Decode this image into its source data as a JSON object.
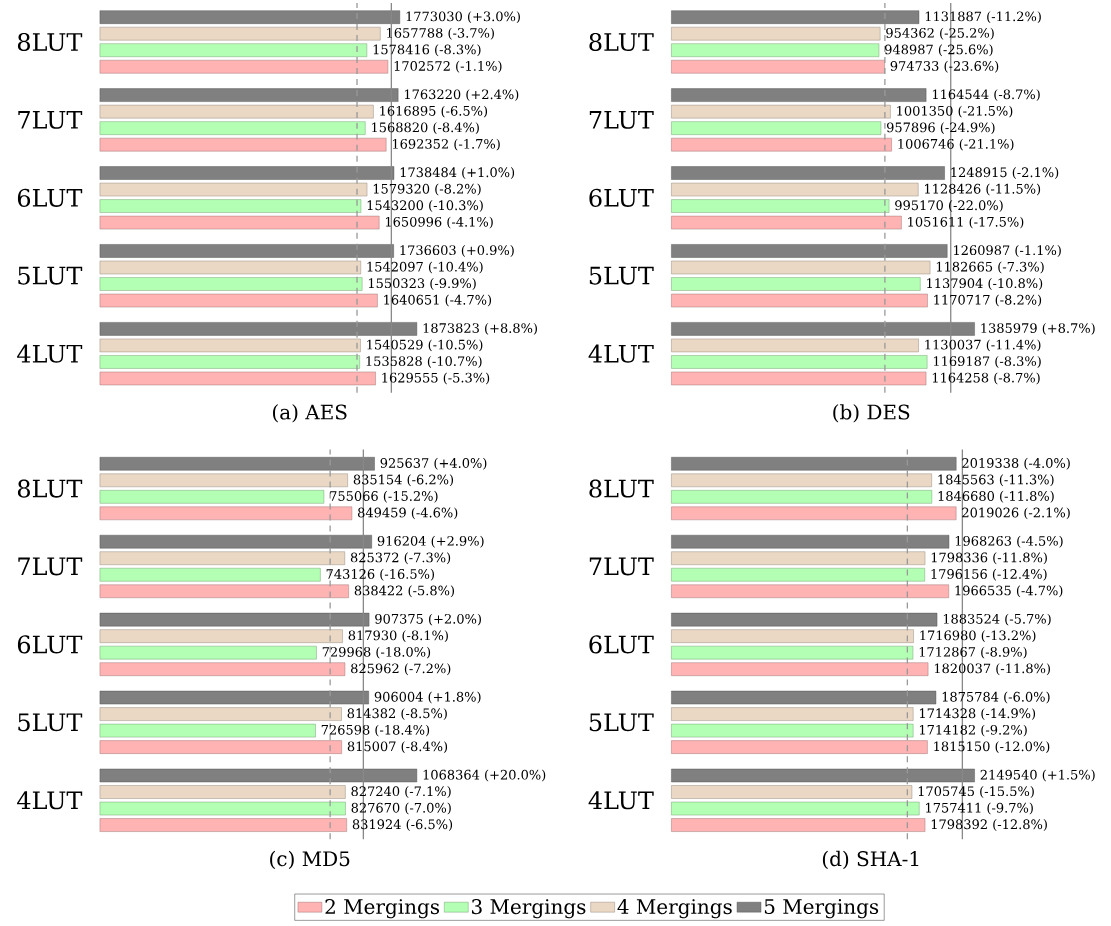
{
  "chart_data": [
    {
      "type": "bar",
      "orientation": "horizontal",
      "title": "(a) AES",
      "categories": [
        "8LUT",
        "7LUT",
        "6LUT",
        "5LUT",
        "4LUT"
      ],
      "tick_labels": "y",
      "series": [
        {
          "color": "#ffb3b3",
          "values": [
            1702572,
            1692352,
            1650996,
            1640651,
            1629555
          ],
          "value_labels": [
            "1702572 (-1.1%)",
            "1692352 (-1.7%)",
            "1650996 (-4.1%)",
            "1640651 (-4.7%)",
            "1629555 (-5.3%)"
          ]
        },
        {
          "color": "#b3ffb3",
          "values": [
            1578416,
            1568820,
            1543200,
            1550323,
            1535828
          ],
          "value_labels": [
            "1578416 (-8.3%)",
            "1568820 (-8.4%)",
            "1543200 (-10.3%)",
            "1550323 (-9.9%)",
            "1535828 (-10.7%)"
          ]
        },
        {
          "color": "#ead8c4",
          "values": [
            1657788,
            1616895,
            1579320,
            1542097,
            1540529
          ],
          "value_labels": [
            "1657788 (-3.7%)",
            "1616895 (-6.5%)",
            "1579320 (-8.2%)",
            "1542097 (-10.4%)",
            "1540529 (-10.5%)"
          ]
        },
        {
          "color": "#808080",
          "values": [
            1773030,
            1763220,
            1738484,
            1736603,
            1873823
          ],
          "value_labels": [
            "1773030 (+3.0%)",
            "1763220 (+2.4%)",
            "1738484 (+1.0%)",
            "1736603 (+0.9%)",
            "1873823 (+8.8%)"
          ]
        }
      ],
      "ref_lines": [
        {
          "axis": "x",
          "value": 1520000,
          "color": "#999999",
          "line_style": "dashed"
        },
        {
          "axis": "x",
          "value": 1723000,
          "color": "#888888",
          "line_style": "solid"
        }
      ]
    },
    {
      "type": "bar",
      "orientation": "horizontal",
      "title": "(b) DES",
      "categories": [
        "8LUT",
        "7LUT",
        "6LUT",
        "5LUT",
        "4LUT"
      ],
      "tick_labels": "y",
      "series": [
        {
          "color": "#ffb3b3",
          "values": [
            974733,
            1006746,
            1051611,
            1170717,
            1164258
          ],
          "value_labels": [
            "974733 (-23.6%)",
            "1006746 (-21.1%)",
            "1051611 (-17.5%)",
            "1170717 (-8.2%)",
            "1164258 (-8.7%)"
          ]
        },
        {
          "color": "#b3ffb3",
          "values": [
            948987,
            957896,
            995170,
            1137904,
            1169187
          ],
          "value_labels": [
            "948987 (-25.6%)",
            "957896 (-24.9%)",
            "995170 (-22.0%)",
            "1137904 (-10.8%)",
            "1169187 (-8.3%)"
          ]
        },
        {
          "color": "#ead8c4",
          "values": [
            954362,
            1001350,
            1128426,
            1182665,
            1130037
          ],
          "value_labels": [
            "954362 (-25.2%)",
            "1001350 (-21.5%)",
            "1128426 (-11.5%)",
            "1182665 (-7.3%)",
            "1130037 (-11.4%)"
          ]
        },
        {
          "color": "#808080",
          "values": [
            1131887,
            1164544,
            1248915,
            1260987,
            1385979
          ],
          "value_labels": [
            "1131887 (-11.2%)",
            "1164544 (-8.7%)",
            "1248915 (-2.1%)",
            "1260987 (-1.1%)",
            "1385979 (+8.7%)"
          ]
        }
      ],
      "ref_lines": [
        {
          "axis": "x",
          "value": 976000,
          "color": "#999999",
          "line_style": "dashed"
        },
        {
          "axis": "x",
          "value": 1277000,
          "color": "#888888",
          "line_style": "solid"
        }
      ]
    },
    {
      "type": "bar",
      "orientation": "horizontal",
      "title": "(c) MD5",
      "categories": [
        "8LUT",
        "7LUT",
        "6LUT",
        "5LUT",
        "4LUT"
      ],
      "tick_labels": "y",
      "legend": "bottom",
      "series": [
        {
          "name": "2 Mergings",
          "color": "#ffb3b3",
          "values": [
            849459,
            838422,
            825962,
            815007,
            831924
          ],
          "value_labels": [
            "849459 (-4.6%)",
            "838422 (-5.8%)",
            "825962 (-7.2%)",
            "815007 (-8.4%)",
            "831924 (-6.5%)"
          ]
        },
        {
          "name": "3 Mergings",
          "color": "#b3ffb3",
          "values": [
            755066,
            743126,
            729968,
            726598,
            827670
          ],
          "value_labels": [
            "755066 (-15.2%)",
            "743126 (-16.5%)",
            "729968 (-18.0%)",
            "726598 (-18.4%)",
            "827670 (-7.0%)"
          ]
        },
        {
          "name": "4 Mergings",
          "color": "#ead8c4",
          "values": [
            835154,
            825372,
            817930,
            814382,
            827240
          ],
          "value_labels": [
            "835154 (-6.2%)",
            "825372 (-7.3%)",
            "817930 (-8.1%)",
            "814382 (-8.5%)",
            "827240 (-7.1%)"
          ]
        },
        {
          "name": "5 Mergings",
          "color": "#808080",
          "values": [
            925637,
            916204,
            907375,
            906004,
            1068364
          ],
          "value_labels": [
            "925637 (+4.0%)",
            "916204 (+2.9%)",
            "907375 (+2.0%)",
            "906004 (+1.8%)",
            "1068364 (+20.0%)"
          ]
        }
      ],
      "ref_lines": [
        {
          "axis": "x",
          "value": 776000,
          "color": "#999999",
          "line_style": "dashed"
        },
        {
          "axis": "x",
          "value": 888000,
          "color": "#888888",
          "line_style": "solid"
        }
      ]
    },
    {
      "type": "bar",
      "orientation": "horizontal",
      "title": "(d) SHA-1",
      "categories": [
        "8LUT",
        "7LUT",
        "6LUT",
        "5LUT",
        "4LUT"
      ],
      "tick_labels": "y",
      "series": [
        {
          "color": "#ffb3b3",
          "values": [
            2019026,
            1966535,
            1820037,
            1815150,
            1798392
          ],
          "value_labels": [
            "2019026 (-2.1%)",
            "1966535 (-4.7%)",
            "1820037 (-11.8%)",
            "1815150 (-12.0%)",
            "1798392 (-12.8%)"
          ]
        },
        {
          "color": "#b3ffb3",
          "values": [
            1846680,
            1796156,
            1712867,
            1714182,
            1757411
          ],
          "value_labels": [
            "1846680 (-11.8%)",
            "1796156 (-12.4%)",
            "1712867 (-8.9%)",
            "1714182 (-9.2%)",
            "1757411 (-9.7%)"
          ]
        },
        {
          "color": "#ead8c4",
          "values": [
            1845563,
            1798336,
            1716980,
            1714328,
            1705745
          ],
          "value_labels": [
            "1845563 (-11.3%)",
            "1798336 (-11.8%)",
            "1716980 (-13.2%)",
            "1714328 (-14.9%)",
            "1705745 (-15.5%)"
          ]
        },
        {
          "color": "#808080",
          "values": [
            2019338,
            1968263,
            1883524,
            1875784,
            2149540
          ],
          "value_labels": [
            "2019338 (-4.0%)",
            "1968263 (-4.5%)",
            "1883524 (-5.7%)",
            "1875784 (-6.0%)",
            "2149540 (+1.5%)"
          ]
        }
      ],
      "ref_lines": [
        {
          "axis": "x",
          "value": 1673000,
          "color": "#999999",
          "line_style": "dashed"
        },
        {
          "axis": "x",
          "value": 2063000,
          "color": "#888888",
          "line_style": "solid"
        }
      ]
    }
  ]
}
